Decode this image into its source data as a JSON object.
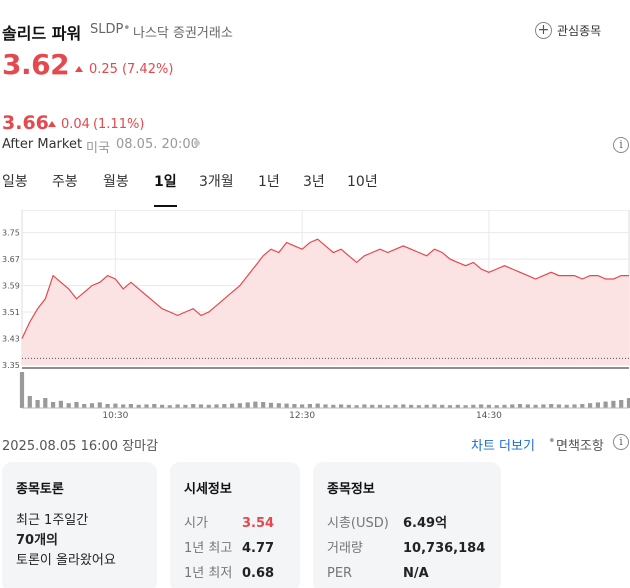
{
  "header": {
    "name": "솔리드 파워",
    "ticker": "SLDP",
    "separator": "•",
    "exchange": "나스닥 증권거래소",
    "watch_label": "관심종목"
  },
  "quote": {
    "price": "3.62",
    "change": "0.25",
    "change_pct": "(7.42%)",
    "up_color": "#e5484d"
  },
  "after_market": {
    "price": "3.66",
    "change": "0.04",
    "change_pct": "(1.11%)",
    "label": "After Market",
    "market": "미국",
    "time": "08.05. 20:00"
  },
  "tabs": [
    {
      "label": "일봉",
      "active": false
    },
    {
      "label": "주봉",
      "active": false
    },
    {
      "label": "월봉",
      "active": false
    },
    {
      "label": "1일",
      "active": true
    },
    {
      "label": "3개월",
      "active": false
    },
    {
      "label": "1년",
      "active": false
    },
    {
      "label": "3년",
      "active": false
    },
    {
      "label": "10년",
      "active": false
    }
  ],
  "chart_data": {
    "type": "area",
    "y_ticks": [
      "3.75",
      "3.67",
      "3.59",
      "3.51",
      "3.43",
      "3.35"
    ],
    "ylim": [
      3.35,
      3.77
    ],
    "reference_price": 3.37,
    "x_ticks": [
      "10:30",
      "12:30",
      "14:30"
    ],
    "x": [
      "09:30",
      "09:35",
      "09:40",
      "09:45",
      "09:50",
      "09:55",
      "10:00",
      "10:05",
      "10:10",
      "10:15",
      "10:20",
      "10:25",
      "10:30",
      "10:35",
      "10:40",
      "10:45",
      "10:50",
      "10:55",
      "11:00",
      "11:05",
      "11:10",
      "11:15",
      "11:20",
      "11:25",
      "11:30",
      "11:35",
      "11:40",
      "11:45",
      "11:50",
      "11:55",
      "12:00",
      "12:05",
      "12:10",
      "12:15",
      "12:20",
      "12:25",
      "12:30",
      "12:35",
      "12:40",
      "12:45",
      "12:50",
      "12:55",
      "13:00",
      "13:05",
      "13:10",
      "13:15",
      "13:20",
      "13:25",
      "13:30",
      "13:35",
      "13:40",
      "13:45",
      "13:50",
      "13:55",
      "14:00",
      "14:05",
      "14:10",
      "14:15",
      "14:20",
      "14:25",
      "14:30",
      "14:35",
      "14:40",
      "14:45",
      "14:50",
      "14:55",
      "15:00",
      "15:05",
      "15:10",
      "15:15",
      "15:20",
      "15:25",
      "15:30",
      "15:35",
      "15:40",
      "15:45",
      "15:50",
      "15:55",
      "16:00"
    ],
    "values": [
      3.43,
      3.48,
      3.52,
      3.55,
      3.62,
      3.6,
      3.58,
      3.55,
      3.57,
      3.59,
      3.6,
      3.62,
      3.61,
      3.58,
      3.6,
      3.58,
      3.56,
      3.54,
      3.52,
      3.51,
      3.5,
      3.51,
      3.52,
      3.5,
      3.51,
      3.53,
      3.55,
      3.57,
      3.59,
      3.62,
      3.65,
      3.68,
      3.7,
      3.69,
      3.72,
      3.71,
      3.7,
      3.72,
      3.73,
      3.71,
      3.69,
      3.7,
      3.68,
      3.66,
      3.68,
      3.69,
      3.7,
      3.69,
      3.7,
      3.71,
      3.7,
      3.69,
      3.68,
      3.7,
      3.69,
      3.67,
      3.66,
      3.65,
      3.66,
      3.64,
      3.63,
      3.64,
      3.65,
      3.64,
      3.63,
      3.62,
      3.61,
      3.62,
      3.63,
      3.62,
      3.62,
      3.62,
      3.61,
      3.62,
      3.62,
      3.61,
      3.61,
      3.62,
      3.62
    ],
    "volumes": [
      90,
      30,
      20,
      25,
      15,
      18,
      12,
      15,
      10,
      12,
      14,
      10,
      11,
      9,
      10,
      8,
      9,
      10,
      8,
      7,
      9,
      8,
      10,
      9,
      8,
      9,
      10,
      11,
      12,
      14,
      16,
      15,
      13,
      12,
      11,
      10,
      9,
      10,
      11,
      9,
      8,
      9,
      8,
      7,
      9,
      8,
      8,
      7,
      8,
      9,
      8,
      7,
      8,
      9,
      8,
      7,
      8,
      7,
      8,
      9,
      8,
      7,
      8,
      9,
      10,
      9,
      8,
      9,
      10,
      9,
      8,
      9,
      10,
      12,
      14,
      16,
      18,
      20,
      25
    ],
    "line_color": "#e5484d",
    "fill_color": "#fbe2e3",
    "volume_color": "#9a9a9a",
    "grid": true
  },
  "footer": {
    "market_time": "2025.08.05 16:00 장마감",
    "more_chart": "차트 더보기",
    "separator": "•",
    "disclaimer": "면책조항"
  },
  "cards": {
    "discussion": {
      "title": "종목토론",
      "line1": "최근 1주일간",
      "count": "70개의",
      "line3": "토론이 올라왔어요"
    },
    "quote_info": {
      "title": "시세정보",
      "rows": [
        {
          "k": "시가",
          "v": "3.54"
        },
        {
          "k": "1년 최고",
          "v": "4.77"
        },
        {
          "k": "1년 최저",
          "v": "0.68"
        }
      ]
    },
    "stock_info": {
      "title": "종목정보",
      "rows": [
        {
          "k": "시총(USD)",
          "v": "6.49억"
        },
        {
          "k": "거래량",
          "v": "10,736,184"
        },
        {
          "k": "PER",
          "v": "N/A"
        }
      ]
    }
  }
}
